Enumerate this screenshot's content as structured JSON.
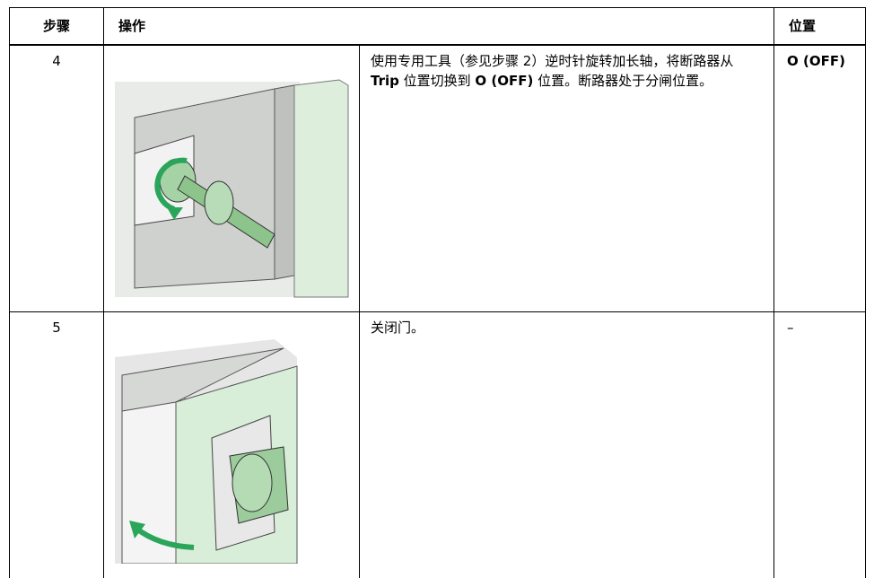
{
  "table": {
    "header": [
      "步骤",
      "操作",
      "位置"
    ],
    "rows": [
      {
        "step": "4",
        "instruction": [
          "使用专用工具（参见步骤 2）逆时针旋转加长轴，将断路器从 ",
          "Trip",
          " 位置切换到 ",
          "O (OFF)",
          " 位置。断路器处于分闸位置。"
        ],
        "position": "O (OFF)"
      },
      {
        "step": "5",
        "instruction": [
          "关闭门。"
        ],
        "position": "–"
      }
    ]
  }
}
